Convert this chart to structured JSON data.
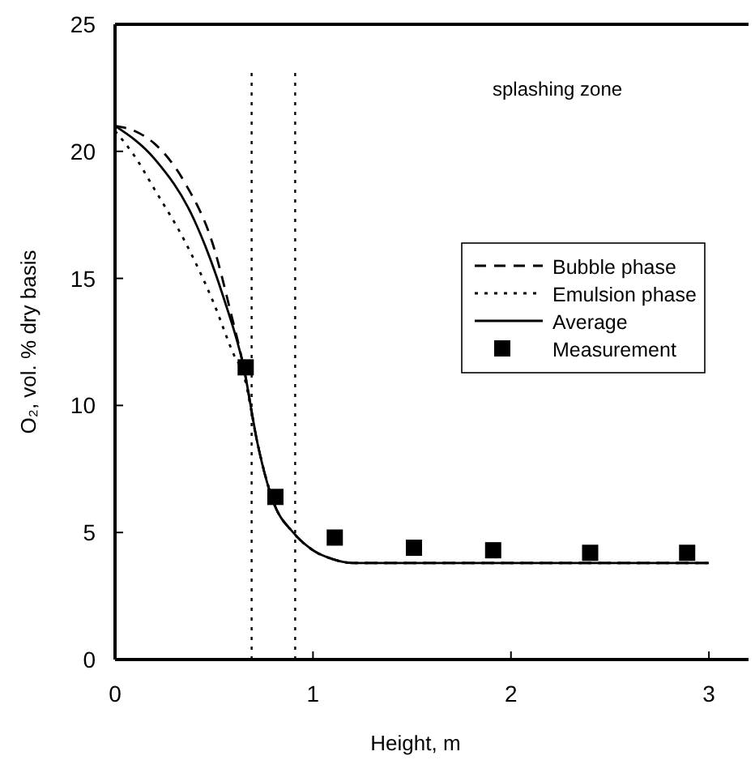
{
  "chart_data": {
    "type": "line",
    "xlabel": "Height, m",
    "ylabel": "O₂, vol. % dry basis",
    "xlim": [
      0,
      3.2
    ],
    "xticks": [
      0,
      1,
      2,
      3
    ],
    "ylim": [
      0,
      25
    ],
    "yticks": [
      0,
      5,
      10,
      15,
      20,
      25
    ],
    "grid": false,
    "legend": "right",
    "annotations": [
      "splashing zone"
    ],
    "ref_lines": [
      {
        "axis": "x",
        "value": 0.69,
        "color": "#000000",
        "line_style": "dotted"
      },
      {
        "axis": "x",
        "value": 0.91,
        "color": "#000000",
        "line_style": "dotted"
      }
    ],
    "series": [
      {
        "name": "Bubble phase",
        "line_style": "dashed",
        "color": "#000000",
        "x": [
          0,
          0.1,
          0.2,
          0.35,
          0.5,
          0.58,
          0.65,
          0.72,
          0.8,
          0.9,
          1.0,
          1.1,
          1.2,
          2,
          3
        ],
        "values": [
          21,
          20.8,
          20.3,
          18.8,
          16.2,
          13.8,
          11.5,
          8.5,
          6.2,
          5,
          4.3,
          3.95,
          3.8,
          3.8,
          3.8
        ]
      },
      {
        "name": "Emulsion phase",
        "line_style": "dotted",
        "color": "#000000",
        "x": [
          0,
          0.1,
          0.2,
          0.35,
          0.5,
          0.6,
          0.65,
          0.72,
          0.8,
          0.9,
          1.0,
          1.1,
          1.2,
          2,
          3
        ],
        "values": [
          20.8,
          19.8,
          18.5,
          16.5,
          14,
          12,
          11.2,
          8.5,
          6.2,
          5,
          4.3,
          3.95,
          3.8,
          3.8,
          3.8
        ]
      },
      {
        "name": "Average",
        "line_style": "solid",
        "color": "#000000",
        "x": [
          0,
          0.2,
          0.4,
          0.55,
          0.65,
          0.72,
          0.8,
          0.9,
          1.0,
          1.1,
          1.2,
          2,
          3
        ],
        "values": [
          21,
          19.7,
          17.3,
          14.2,
          11.5,
          8.5,
          6.2,
          5,
          4.3,
          3.95,
          3.8,
          3.8,
          3.8
        ]
      },
      {
        "name": "Measurement",
        "type": "scatter",
        "marker": "square",
        "color": "#000000",
        "x": [
          0.66,
          0.81,
          1.11,
          1.51,
          1.91,
          2.4,
          2.89
        ],
        "values": [
          11.5,
          6.4,
          4.8,
          4.4,
          4.3,
          4.2,
          4.2
        ]
      }
    ]
  }
}
